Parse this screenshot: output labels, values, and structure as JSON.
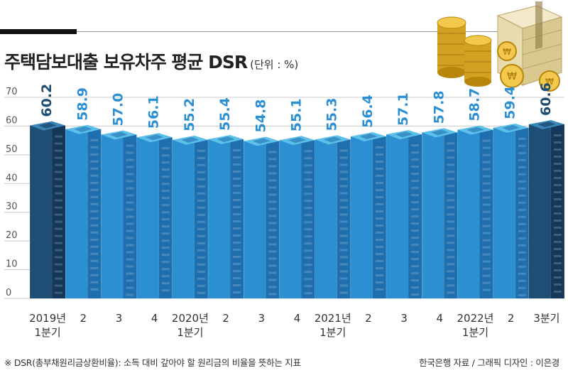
{
  "title": "주택담보대출 보유차주 평균 DSR",
  "unit": "(단위 : %)",
  "footnote": "※ DSR(총부채원리금상환비율): 소득 대비 갚아야 할 원리금의 비율을 뜻하는 지표",
  "source": "한국은행 자료 / 그래픽 디자인 : 이은경",
  "chart_data": {
    "type": "bar",
    "title": "주택담보대출 보유차주 평균 DSR",
    "ylabel": "(단위 : %)",
    "xlabel": "",
    "ylim": [
      0,
      70
    ],
    "yticks": [
      0,
      10,
      20,
      30,
      40,
      50,
      60,
      70
    ],
    "categories": [
      {
        "l1": "2019년",
        "l2": "1분기"
      },
      {
        "l1": "2",
        "l2": ""
      },
      {
        "l1": "3",
        "l2": ""
      },
      {
        "l1": "4",
        "l2": ""
      },
      {
        "l1": "2020년",
        "l2": "1분기"
      },
      {
        "l1": "2",
        "l2": ""
      },
      {
        "l1": "3",
        "l2": ""
      },
      {
        "l1": "4",
        "l2": ""
      },
      {
        "l1": "2021년",
        "l2": "1분기"
      },
      {
        "l1": "2",
        "l2": ""
      },
      {
        "l1": "3",
        "l2": ""
      },
      {
        "l1": "4",
        "l2": ""
      },
      {
        "l1": "2022년",
        "l2": "1분기"
      },
      {
        "l1": "2",
        "l2": ""
      },
      {
        "l1": "3분기",
        "l2": ""
      }
    ],
    "values": [
      60.2,
      58.9,
      57.0,
      56.1,
      55.2,
      55.4,
      54.8,
      55.1,
      55.3,
      56.4,
      57.1,
      57.8,
      58.7,
      59.4,
      60.6
    ],
    "labels": [
      "60.2",
      "58.9",
      "57.0",
      "56.1",
      "55.2",
      "55.4",
      "54.8",
      "55.1",
      "55.3",
      "56.4",
      "57.1",
      "57.8",
      "58.7",
      "59.4",
      "60.6"
    ],
    "highlight": [
      0,
      14
    ],
    "grid": true,
    "colors": {
      "bar": "#2b8fd2",
      "bar_shade": "#1f6fae",
      "bar_top": "#5cc0ea",
      "highlight": "#1e4e73",
      "highlight_shade": "#14375a",
      "highlight_top": "#3a86b8",
      "label": "#2b8fd2",
      "label_highlight": "#1e4e73"
    }
  }
}
